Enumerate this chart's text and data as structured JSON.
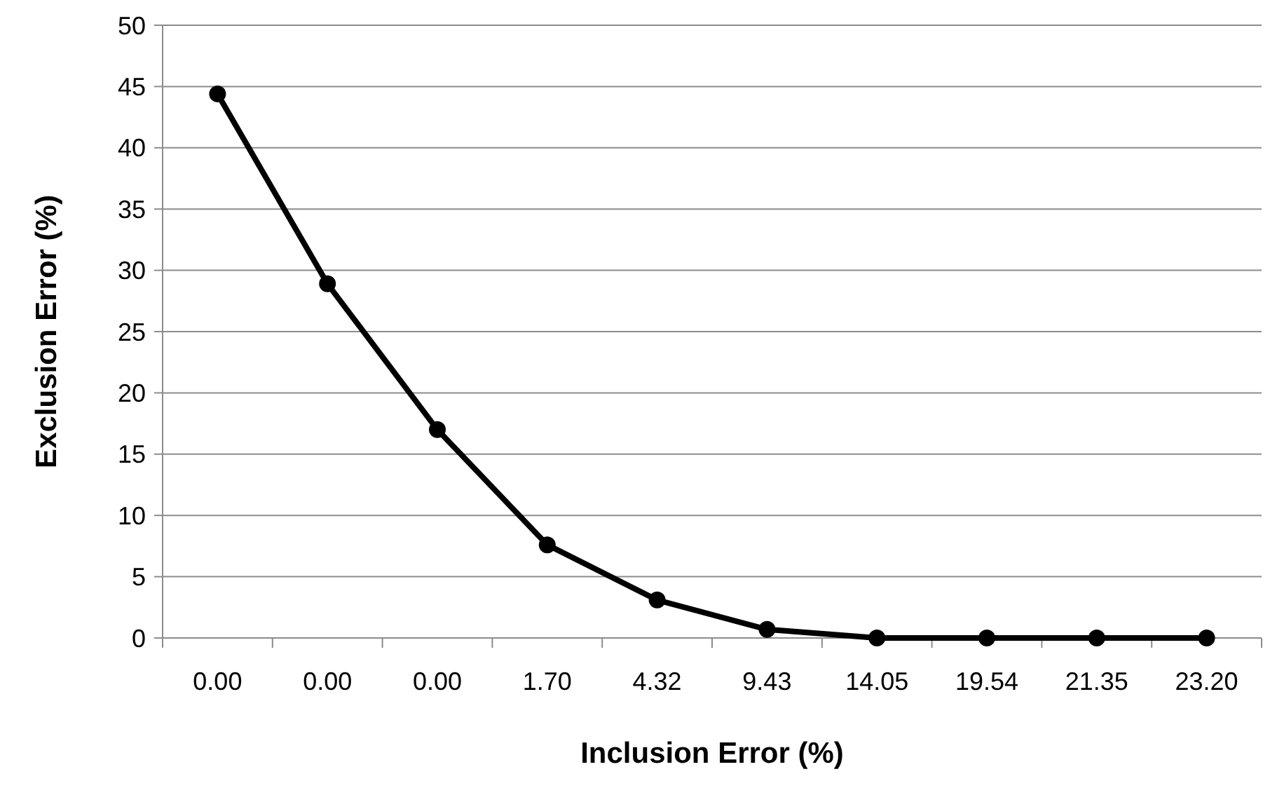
{
  "chart_data": {
    "type": "line",
    "xlabel": "Inclusion Error (%)",
    "ylabel": "Exclusion Error (%)",
    "categories": [
      "0.00",
      "0.00",
      "0.00",
      "1.70",
      "4.32",
      "9.43",
      "14.05",
      "19.54",
      "21.35",
      "23.20"
    ],
    "series": [
      {
        "color": "#000000",
        "values": [
          44.4,
          28.9,
          17.0,
          7.6,
          3.1,
          0.7,
          0,
          0,
          0,
          0
        ]
      }
    ],
    "ylim": [
      0,
      50
    ],
    "yticks": [
      0,
      5,
      10,
      15,
      20,
      25,
      30,
      35,
      40,
      45,
      50
    ],
    "grid": "y",
    "marker": "circle",
    "line_style": "solid"
  }
}
